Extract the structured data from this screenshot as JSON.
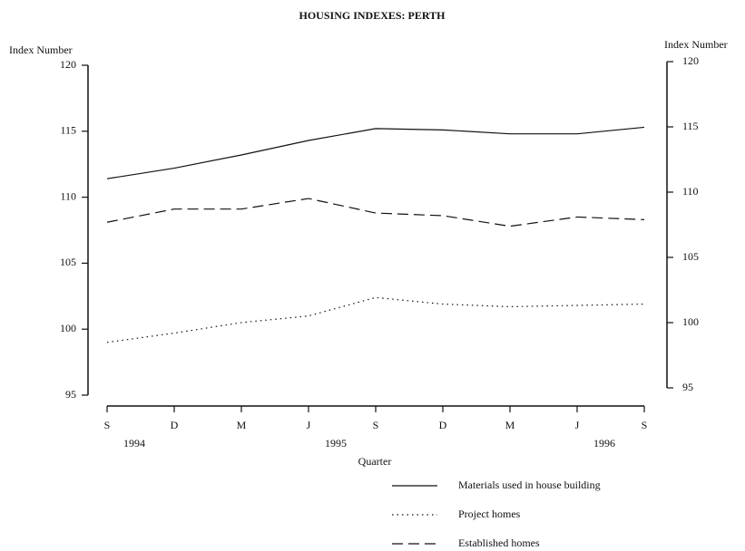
{
  "chart_data": {
    "type": "line",
    "title": "HOUSING INDEXES:  PERTH",
    "y_label": "Index Number",
    "y2_label": "Index Number",
    "x_label": "Quarter",
    "categories": [
      "S",
      "D",
      "M",
      "J",
      "S",
      "D",
      "M",
      "J",
      "S"
    ],
    "year_labels": [
      "1994",
      null,
      null,
      "1995",
      null,
      null,
      null,
      "1996",
      null
    ],
    "ylim": [
      95,
      120
    ],
    "yticks": [
      95,
      100,
      105,
      110,
      115,
      120
    ],
    "y2lim": [
      95,
      120
    ],
    "y2ticks": [
      95,
      100,
      105,
      110,
      115,
      120
    ],
    "series": [
      {
        "name": "Materials used in house building",
        "color": "#111111",
        "style": "solid",
        "values": [
          111.4,
          112.2,
          113.2,
          114.3,
          115.2,
          115.1,
          114.8,
          114.8,
          115.3
        ]
      },
      {
        "name": "Project homes",
        "color": "#111111",
        "style": "dotted",
        "values": [
          99.0,
          99.7,
          100.5,
          101.0,
          102.4,
          101.9,
          101.7,
          101.8,
          101.9
        ]
      },
      {
        "name": "Established homes",
        "color": "#111111",
        "style": "dashed",
        "values": [
          108.1,
          109.1,
          109.1,
          109.9,
          108.8,
          108.6,
          107.8,
          108.5,
          108.3
        ]
      }
    ]
  }
}
